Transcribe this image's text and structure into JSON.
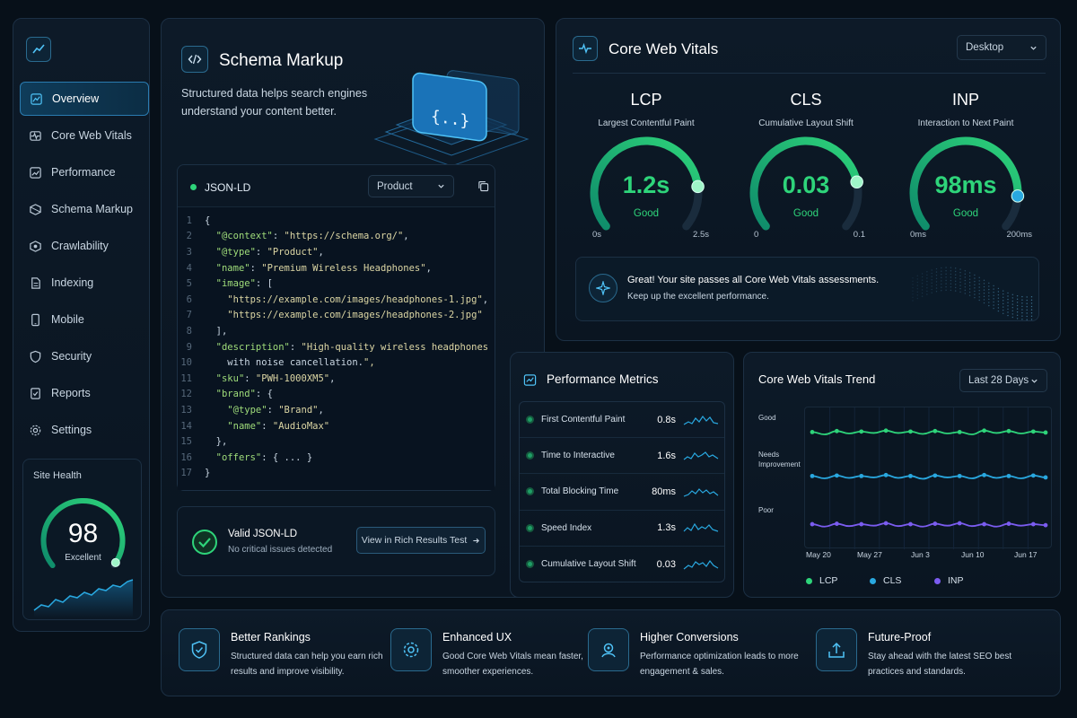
{
  "sidebar": {
    "items": [
      {
        "label": "Overview",
        "icon": "overview-icon",
        "active": true
      },
      {
        "label": "Core Web Vitals",
        "icon": "vitals-icon"
      },
      {
        "label": "Performance",
        "icon": "performance-icon"
      },
      {
        "label": "Schema Markup",
        "icon": "schema-icon"
      },
      {
        "label": "Crawlability",
        "icon": "crawl-icon"
      },
      {
        "label": "Indexing",
        "icon": "indexing-icon"
      },
      {
        "label": "Mobile",
        "icon": "mobile-icon"
      },
      {
        "label": "Security",
        "icon": "shield-icon"
      },
      {
        "label": "Reports",
        "icon": "reports-icon"
      },
      {
        "label": "Settings",
        "icon": "gear-icon"
      }
    ],
    "site_health": {
      "title": "Site Health",
      "score": "98",
      "label": "Excellent",
      "score_fraction": 0.98
    }
  },
  "schema": {
    "title": "Schema Markup",
    "description": "Structured data helps search engines understand your content better.",
    "editor": {
      "label": "JSON-LD",
      "type_select": "Product",
      "lines": [
        "{",
        "  \"@context\": \"https://schema.org/\",",
        "  \"@type\": \"Product\",",
        "  \"name\": \"Premium Wireless Headphones\",",
        "  \"image\": [",
        "    \"https://example.com/images/headphones-1.jpg\",",
        "    \"https://example.com/images/headphones-2.jpg\"",
        "  ],",
        "  \"description\": \"High-quality wireless headphones",
        "    with noise cancellation.\",",
        "  \"sku\": \"PWH-1000XM5\",",
        "  \"brand\": {",
        "    \"@type\": \"Brand\",",
        "    \"name\": \"AudioMax\"",
        "  },",
        "  \"offers\": { ... }",
        "}"
      ]
    },
    "validation": {
      "title": "Valid JSON-LD",
      "subtitle": "No critical issues detected",
      "button": "View in Rich Results Test"
    }
  },
  "cwv": {
    "title": "Core Web Vitals",
    "device": "Desktop",
    "metrics": [
      {
        "abbr": "LCP",
        "name": "Largest Contentful Paint",
        "value": "1.2s",
        "status": "Good",
        "min": "0s",
        "max": "2.5s",
        "fraction": 0.82
      },
      {
        "abbr": "CLS",
        "name": "Cumulative Layout Shift",
        "value": "0.03",
        "status": "Good",
        "min": "0",
        "max": "0.1",
        "fraction": 0.8
      },
      {
        "abbr": "INP",
        "name": "Interaction to Next Paint",
        "value": "98ms",
        "status": "Good",
        "min": "0ms",
        "max": "200ms",
        "fraction": 0.86
      }
    ],
    "message": {
      "title": "Great! Your site passes all Core Web Vitals assessments.",
      "subtitle": "Keep up the excellent performance."
    }
  },
  "performance": {
    "title": "Performance Metrics",
    "rows": [
      {
        "name": "First Contentful Paint",
        "value": "0.8s"
      },
      {
        "name": "Time to Interactive",
        "value": "1.6s"
      },
      {
        "name": "Total Blocking Time",
        "value": "80ms"
      },
      {
        "name": "Speed Index",
        "value": "1.3s"
      },
      {
        "name": "Cumulative Layout Shift",
        "value": "0.03"
      }
    ]
  },
  "trend": {
    "title": "Core Web Vitals Trend",
    "range": "Last 28 Days",
    "y_labels": [
      "Good",
      "Needs Improvement",
      "Poor"
    ],
    "x_labels": [
      "May 20",
      "May 27",
      "Jun 3",
      "Jun 10",
      "Jun 17"
    ],
    "colors": {
      "LCP": "#2ed47a",
      "CLS": "#29a8e0",
      "INP": "#7b5cf0"
    }
  },
  "chart_data": {
    "type": "line",
    "title": "Core Web Vitals Trend",
    "x": [
      "May 20",
      "May 21",
      "May 23",
      "May 24",
      "May 26",
      "May 27",
      "May 29",
      "May 30",
      "Jun 1",
      "Jun 2",
      "Jun 4",
      "Jun 5",
      "Jun 7",
      "Jun 8",
      "Jun 10",
      "Jun 11",
      "Jun 13",
      "Jun 14",
      "Jun 16",
      "Jun 17"
    ],
    "y_categories": [
      "Poor",
      "Needs Improvement",
      "Good"
    ],
    "series": [
      {
        "name": "LCP",
        "values": [
          2.98,
          2.93,
          3.0,
          2.95,
          2.99,
          2.96,
          3.01,
          2.96,
          2.99,
          2.94,
          3.0,
          2.95,
          2.98,
          2.93,
          3.01,
          2.96,
          3.0,
          2.95,
          2.99,
          2.97
        ]
      },
      {
        "name": "CLS",
        "values": [
          2.05,
          2.0,
          2.06,
          2.01,
          2.05,
          2.02,
          2.07,
          2.01,
          2.05,
          1.99,
          2.06,
          2.02,
          2.05,
          2.0,
          2.07,
          2.01,
          2.05,
          2.0,
          2.06,
          2.02
        ]
      },
      {
        "name": "INP",
        "values": [
          1.03,
          0.98,
          1.04,
          0.99,
          1.03,
          1.0,
          1.05,
          0.99,
          1.03,
          0.98,
          1.04,
          1.0,
          1.05,
          0.99,
          1.03,
          0.98,
          1.04,
          1.0,
          1.03,
          1.01
        ]
      }
    ],
    "ylim": [
      0.5,
      3.5
    ],
    "legend": "bottom"
  },
  "benefits": [
    {
      "title": "Better Rankings",
      "desc": "Structured data can help you earn rich results and improve visibility.",
      "icon": "shield-check-icon"
    },
    {
      "title": "Enhanced UX",
      "desc": "Good Core Web Vitals mean faster, smoother experiences.",
      "icon": "gear-icon"
    },
    {
      "title": "Higher Conversions",
      "desc": "Performance optimization leads to more engagement & sales.",
      "icon": "target-icon"
    },
    {
      "title": "Future-Proof",
      "desc": "Stay ahead with the latest SEO best practices and standards.",
      "icon": "upload-icon"
    }
  ]
}
